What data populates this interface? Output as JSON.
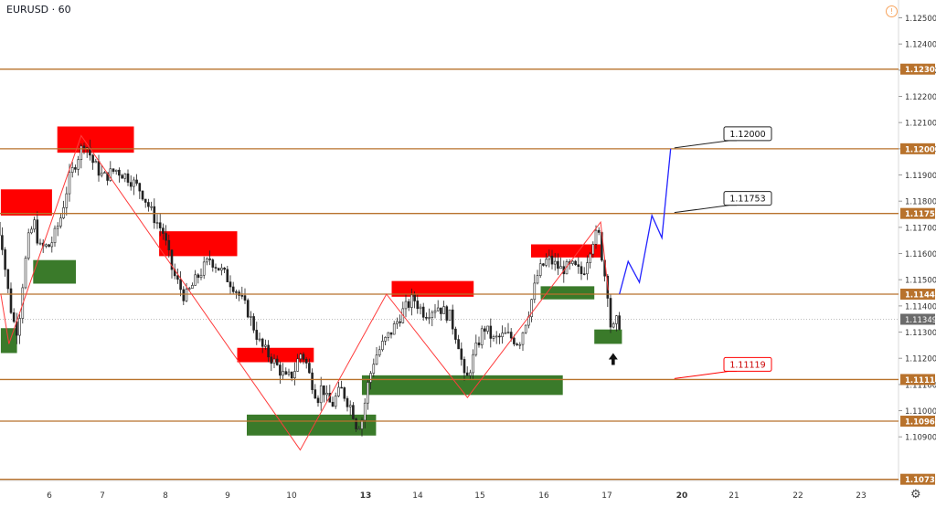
{
  "header": {
    "symbol": "EURUSD",
    "separator": " · ",
    "interval": "60"
  },
  "icons": {
    "warning": "exclamation-circle-icon",
    "settings": "gear-icon"
  },
  "colors": {
    "level": "#b8722c",
    "support": "#3a7a2a",
    "resistance": "#ff0000",
    "zigzag": "#ff3b3b",
    "projection": "#2323ff",
    "candle": "#222222",
    "price_label": "#6b6b6b"
  },
  "chart_data": {
    "type": "candlestick",
    "ylim": [
      1.1072,
      1.1255
    ],
    "y_ticks": [
      "1.12500",
      "1.12400",
      "1.12300",
      "1.12200",
      "1.12100",
      "1.12000",
      "1.11900",
      "1.11800",
      "1.11700",
      "1.11600",
      "1.11500",
      "1.11400",
      "1.11300",
      "1.11200",
      "1.11100",
      "1.11000",
      "1.10900"
    ],
    "x_ticks": [
      "6",
      "7",
      "8",
      "9",
      "10",
      "13",
      "14",
      "15",
      "16",
      "17",
      "20",
      "21",
      "22",
      "23"
    ],
    "bold_x_ticks": [
      "13",
      "20"
    ],
    "current_price": "1.11349",
    "levels": [
      "1.12304",
      "1.12000",
      "1.11753",
      "1.11445",
      "1.11119",
      "1.10960",
      "1.10738"
    ],
    "callouts": [
      {
        "text": "1.12000",
        "style": "black"
      },
      {
        "text": "1.11753",
        "style": "black"
      },
      {
        "text": "1.11119",
        "style": "red"
      }
    ],
    "resistance_zones": [
      {
        "from": 5.1,
        "to": 6.05,
        "high": 1.11845,
        "low": 1.11745
      },
      {
        "from": 6.15,
        "to": 7.5,
        "high": 1.12085,
        "low": 1.11985
      },
      {
        "from": 7.9,
        "to": 9.15,
        "high": 1.11685,
        "low": 1.1159
      },
      {
        "from": 9.15,
        "to": 10.9,
        "high": 1.1124,
        "low": 1.11185
      },
      {
        "from": 13.5,
        "to": 14.9,
        "high": 1.11495,
        "low": 1.11435
      },
      {
        "from": 15.8,
        "to": 16.9,
        "high": 1.11635,
        "low": 1.11585
      }
    ],
    "support_zones": [
      {
        "from": 5.1,
        "to": 5.4,
        "high": 1.11315,
        "low": 1.1122
      },
      {
        "from": 5.7,
        "to": 6.5,
        "high": 1.11575,
        "low": 1.11485
      },
      {
        "from": 9.3,
        "to": 13.2,
        "high": 1.10985,
        "low": 1.10905
      },
      {
        "from": 12.85,
        "to": 16.3,
        "high": 1.11135,
        "low": 1.1106
      },
      {
        "from": 15.95,
        "to": 16.8,
        "high": 1.11475,
        "low": 1.11425
      },
      {
        "from": 16.8,
        "to": 17.6,
        "high": 1.1131,
        "low": 1.11255
      }
    ],
    "zigzag": [
      [
        5.1,
        1.11445
      ],
      [
        5.25,
        1.11255
      ],
      [
        6.6,
        1.1205
      ],
      [
        10.35,
        1.1085
      ],
      [
        13.4,
        1.11445
      ],
      [
        14.8,
        1.1105
      ],
      [
        16.9,
        1.1172
      ],
      [
        17.05,
        1.1146
      ]
    ],
    "projection": [
      [
        17.5,
        1.11445
      ],
      [
        17.85,
        1.1157
      ],
      [
        18.3,
        1.1149
      ],
      [
        18.8,
        1.11745
      ],
      [
        19.2,
        1.1166
      ],
      [
        19.55,
        1.12
      ]
    ],
    "close_path": [
      [
        5.0,
        1.1172
      ],
      [
        5.1,
        1.1165
      ],
      [
        5.2,
        1.1148
      ],
      [
        5.3,
        1.1135
      ],
      [
        5.4,
        1.113
      ],
      [
        5.5,
        1.1151
      ],
      [
        5.6,
        1.1166
      ],
      [
        5.7,
        1.1172
      ],
      [
        5.8,
        1.1162
      ],
      [
        6.0,
        1.1163
      ],
      [
        6.1,
        1.1168
      ],
      [
        6.2,
        1.1174
      ],
      [
        6.35,
        1.1188
      ],
      [
        6.5,
        1.1196
      ],
      [
        6.65,
        1.1203
      ],
      [
        6.8,
        1.1195
      ],
      [
        7.0,
        1.1189
      ],
      [
        7.2,
        1.1192
      ],
      [
        7.4,
        1.1189
      ],
      [
        7.6,
        1.1184
      ],
      [
        7.8,
        1.1174
      ],
      [
        7.95,
        1.1168
      ],
      [
        8.1,
        1.1153
      ],
      [
        8.3,
        1.1143
      ],
      [
        8.5,
        1.1151
      ],
      [
        8.7,
        1.1158
      ],
      [
        8.9,
        1.1153
      ],
      [
        9.1,
        1.1147
      ],
      [
        9.3,
        1.1138
      ],
      [
        9.5,
        1.1125
      ],
      [
        9.7,
        1.1119
      ],
      [
        9.9,
        1.1112
      ],
      [
        10.1,
        1.1116
      ],
      [
        10.3,
        1.1122
      ],
      [
        10.5,
        1.112
      ],
      [
        10.7,
        1.1113
      ],
      [
        10.9,
        1.1108
      ],
      [
        11.0,
        1.1104
      ],
      [
        11.2,
        1.111
      ],
      [
        11.4,
        1.1104
      ],
      [
        11.6,
        1.1102
      ],
      [
        11.8,
        1.1106
      ],
      [
        12.0,
        1.1108
      ],
      [
        12.2,
        1.1104
      ],
      [
        12.4,
        1.1101
      ],
      [
        12.6,
        1.1094
      ],
      [
        12.8,
        1.1096
      ],
      [
        12.95,
        1.1104
      ],
      [
        13.15,
        1.112
      ],
      [
        13.3,
        1.1125
      ],
      [
        13.5,
        1.1131
      ],
      [
        13.7,
        1.1138
      ],
      [
        13.9,
        1.1143
      ],
      [
        14.1,
        1.1137
      ],
      [
        14.3,
        1.114
      ],
      [
        14.5,
        1.1136
      ],
      [
        14.65,
        1.1125
      ],
      [
        14.75,
        1.111
      ],
      [
        14.9,
        1.1122
      ],
      [
        15.05,
        1.1132
      ],
      [
        15.2,
        1.1127
      ],
      [
        15.4,
        1.1129
      ],
      [
        15.6,
        1.1126
      ],
      [
        15.75,
        1.1138
      ],
      [
        15.9,
        1.1153
      ],
      [
        16.05,
        1.1158
      ],
      [
        16.25,
        1.1154
      ],
      [
        16.45,
        1.1155
      ],
      [
        16.6,
        1.1152
      ],
      [
        16.75,
        1.1165
      ],
      [
        16.85,
        1.1168
      ],
      [
        16.95,
        1.1152
      ],
      [
        17.05,
        1.1138
      ],
      [
        17.15,
        1.1129
      ],
      [
        17.25,
        1.1132
      ],
      [
        17.35,
        1.1134
      ],
      [
        17.45,
        1.1133
      ],
      [
        17.55,
        1.1135
      ]
    ]
  }
}
